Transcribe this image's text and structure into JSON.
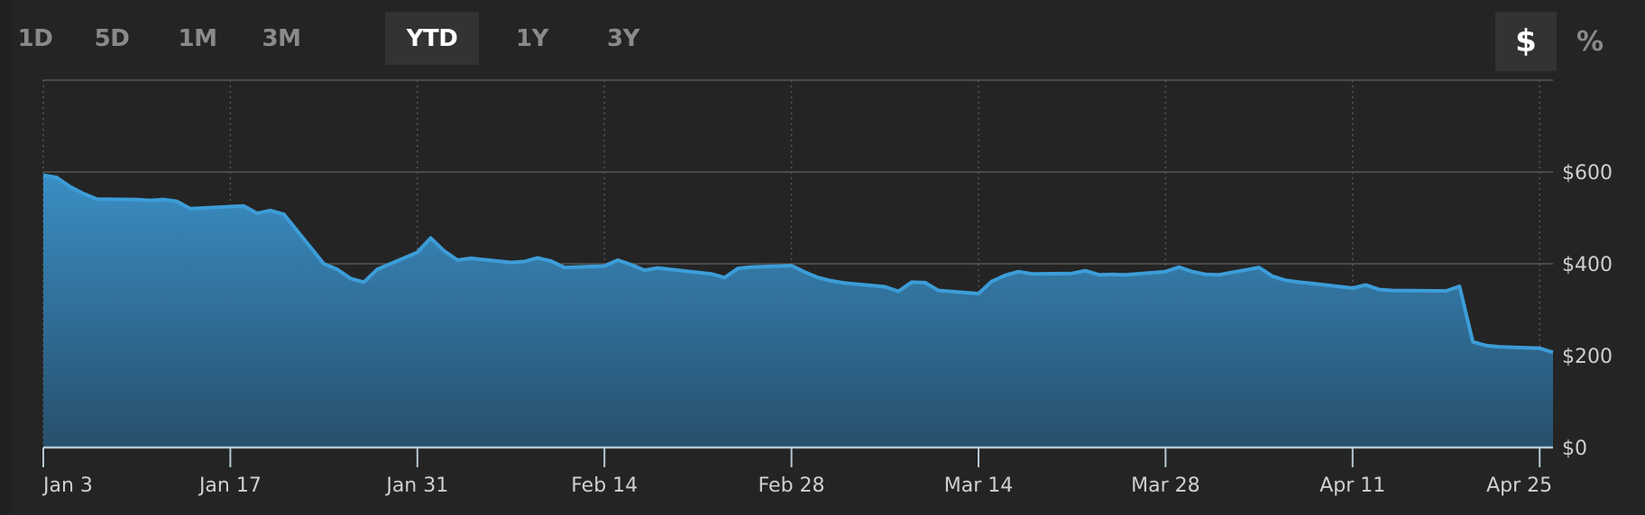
{
  "range_tabs": [
    {
      "label": "1D",
      "active": false
    },
    {
      "label": "5D",
      "active": false
    },
    {
      "label": "1M",
      "active": false
    },
    {
      "label": "3M",
      "active": false
    },
    {
      "label": "YTD",
      "active": true
    },
    {
      "label": "1Y",
      "active": false
    },
    {
      "label": "3Y",
      "active": false
    }
  ],
  "unit_toggle": {
    "dollar_label": "$",
    "percent_label": "%",
    "selected": "$"
  },
  "colors": {
    "background": "#242424",
    "line": "#3c9dd8",
    "fill_top": "#3a8ec4",
    "fill_bottom": "#274f6c",
    "gridline": "#4a4a4a",
    "axis": "#b4c8d6"
  },
  "chart_data": {
    "type": "area",
    "title": "",
    "xlabel": "",
    "ylabel": "",
    "x_ticks": [
      "Jan 3",
      "Jan 17",
      "Jan 31",
      "Feb 14",
      "Feb 28",
      "Mar 14",
      "Mar 28",
      "Apr 11",
      "Apr 25"
    ],
    "y_ticks": [
      "$0",
      "$200",
      "$400",
      "$600"
    ],
    "y_axis_position": "right",
    "ylim": [
      0,
      800
    ],
    "grid": true,
    "series": [
      {
        "x": [
          "2022-01-03",
          "2022-01-04",
          "2022-01-05",
          "2022-01-06",
          "2022-01-07",
          "2022-01-10",
          "2022-01-11",
          "2022-01-12",
          "2022-01-13",
          "2022-01-14",
          "2022-01-18",
          "2022-01-19",
          "2022-01-20",
          "2022-01-21",
          "2022-01-24",
          "2022-01-25",
          "2022-01-26",
          "2022-01-27",
          "2022-01-28",
          "2022-01-31",
          "2022-02-01",
          "2022-02-02",
          "2022-02-03",
          "2022-02-04",
          "2022-02-07",
          "2022-02-08",
          "2022-02-09",
          "2022-02-10",
          "2022-02-11",
          "2022-02-14",
          "2022-02-15",
          "2022-02-16",
          "2022-02-17",
          "2022-02-18",
          "2022-02-22",
          "2022-02-23",
          "2022-02-24",
          "2022-02-25",
          "2022-02-28",
          "2022-03-01",
          "2022-03-02",
          "2022-03-03",
          "2022-03-04",
          "2022-03-07",
          "2022-03-08",
          "2022-03-09",
          "2022-03-10",
          "2022-03-11",
          "2022-03-14",
          "2022-03-15",
          "2022-03-16",
          "2022-03-17",
          "2022-03-18",
          "2022-03-21",
          "2022-03-22",
          "2022-03-23",
          "2022-03-24",
          "2022-03-25",
          "2022-03-28",
          "2022-03-29",
          "2022-03-30",
          "2022-03-31",
          "2022-04-01",
          "2022-04-04",
          "2022-04-05",
          "2022-04-06",
          "2022-04-07",
          "2022-04-08",
          "2022-04-11",
          "2022-04-12",
          "2022-04-13",
          "2022-04-14",
          "2022-04-18",
          "2022-04-19",
          "2022-04-20",
          "2022-04-21",
          "2022-04-22",
          "2022-04-25",
          "2022-04-26"
        ],
        "y": [
          593,
          588,
          568,
          553,
          541,
          540,
          538,
          540,
          536,
          520,
          526,
          510,
          516,
          508,
          400,
          388,
          368,
          360,
          388,
          425,
          456,
          428,
          408,
          412,
          403,
          405,
          413,
          406,
          392,
          395,
          408,
          398,
          386,
          391,
          378,
          370,
          390,
          393,
          396,
          382,
          370,
          363,
          358,
          350,
          340,
          360,
          359,
          342,
          335,
          362,
          375,
          383,
          378,
          379,
          385,
          376,
          377,
          376,
          383,
          393,
          383,
          377,
          376,
          392,
          373,
          364,
          360,
          357,
          347,
          354,
          344,
          342,
          341,
          351,
          230,
          222,
          219,
          216,
          207
        ]
      }
    ]
  }
}
